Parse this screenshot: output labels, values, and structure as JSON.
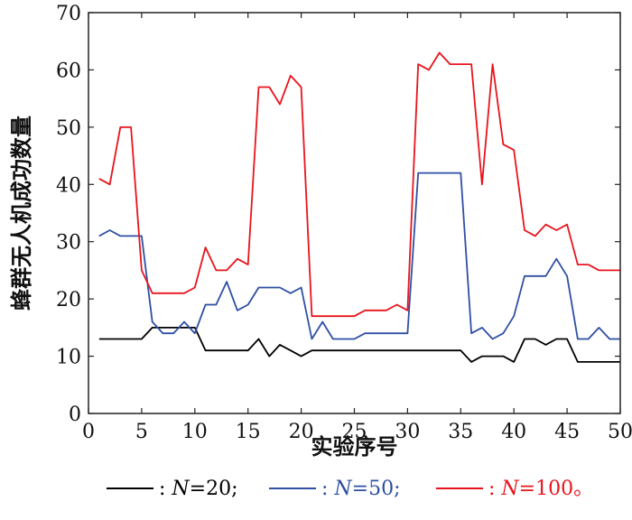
{
  "chart_data": {
    "type": "line",
    "xlabel": "实验序号",
    "ylabel": "蜂群无人机成功数量",
    "xlim": [
      0,
      50
    ],
    "ylim": [
      0,
      70
    ],
    "xticks": [
      0,
      5,
      10,
      15,
      20,
      25,
      30,
      35,
      40,
      45,
      50
    ],
    "yticks": [
      0,
      10,
      20,
      30,
      40,
      50,
      60,
      70
    ],
    "grid": false,
    "legend_position": "bottom",
    "x": [
      1,
      2,
      3,
      4,
      5,
      6,
      7,
      8,
      9,
      10,
      11,
      12,
      13,
      14,
      15,
      16,
      17,
      18,
      19,
      20,
      21,
      22,
      23,
      24,
      25,
      26,
      27,
      28,
      29,
      30,
      31,
      32,
      33,
      34,
      35,
      36,
      37,
      38,
      39,
      40,
      41,
      42,
      43,
      44,
      45,
      46,
      47,
      48,
      49,
      50
    ],
    "series": [
      {
        "name": "N=20",
        "color": "#000000",
        "legend_parts": {
          "prefix": ": ",
          "var": "N",
          "suffix": "=20;"
        },
        "values": [
          13,
          13,
          13,
          13,
          13,
          15,
          15,
          15,
          15,
          15,
          11,
          11,
          11,
          11,
          11,
          13,
          10,
          12,
          11,
          10,
          11,
          11,
          11,
          11,
          11,
          11,
          11,
          11,
          11,
          11,
          11,
          11,
          11,
          11,
          11,
          9,
          10,
          10,
          10,
          9,
          13,
          13,
          12,
          13,
          13,
          9,
          9,
          9,
          9,
          9
        ]
      },
      {
        "name": "N=50",
        "color": "#2e4fa3",
        "legend_parts": {
          "prefix": ": ",
          "var": "N",
          "suffix": "=50;"
        },
        "values": [
          31,
          32,
          31,
          31,
          31,
          16,
          14,
          14,
          16,
          14,
          19,
          19,
          23,
          18,
          19,
          22,
          22,
          22,
          21,
          22,
          13,
          16,
          13,
          13,
          13,
          14,
          14,
          14,
          14,
          14,
          42,
          42,
          42,
          42,
          42,
          14,
          15,
          13,
          14,
          17,
          24,
          24,
          24,
          27,
          24,
          13,
          13,
          15,
          13,
          13
        ]
      },
      {
        "name": "N=100",
        "color": "#e8141c",
        "legend_parts": {
          "prefix": ": ",
          "var": "N",
          "suffix": "=100。"
        },
        "values": [
          41,
          40,
          50,
          50,
          25,
          21,
          21,
          21,
          21,
          22,
          29,
          25,
          25,
          27,
          26,
          57,
          57,
          54,
          59,
          57,
          17,
          17,
          17,
          17,
          17,
          18,
          18,
          18,
          19,
          18,
          61,
          60,
          63,
          61,
          61,
          61,
          40,
          61,
          47,
          46,
          32,
          31,
          33,
          32,
          33,
          26,
          26,
          25,
          25,
          25
        ]
      }
    ]
  }
}
